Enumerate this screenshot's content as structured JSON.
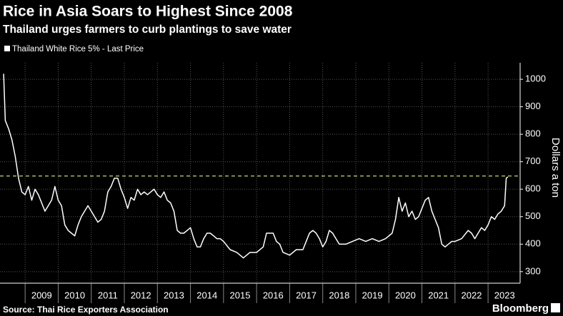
{
  "chart_data": {
    "type": "line",
    "title": "Rice in Asia Soars to Highest Since 2008",
    "subtitle": "Thailand urges farmers to curb plantings to save water",
    "y_label": "Dollars a ton",
    "source": "Source: Thai Rice Exporters Association",
    "brand": "Bloomberg",
    "x": [
      2008.35,
      2008.4,
      2008.5,
      2008.6,
      2008.7,
      2008.8,
      2008.9,
      2009.0,
      2009.1,
      2009.2,
      2009.3,
      2009.4,
      2009.5,
      2009.6,
      2009.7,
      2009.8,
      2009.9,
      2010.0,
      2010.1,
      2010.2,
      2010.3,
      2010.4,
      2010.5,
      2010.6,
      2010.7,
      2010.8,
      2010.9,
      2011.0,
      2011.1,
      2011.2,
      2011.3,
      2011.4,
      2011.5,
      2011.6,
      2011.7,
      2011.8,
      2011.9,
      2012.0,
      2012.1,
      2012.2,
      2012.3,
      2012.4,
      2012.5,
      2012.6,
      2012.7,
      2012.8,
      2012.9,
      2013.0,
      2013.1,
      2013.2,
      2013.3,
      2013.4,
      2013.5,
      2013.6,
      2013.7,
      2013.8,
      2013.9,
      2014.0,
      2014.1,
      2014.2,
      2014.3,
      2014.4,
      2014.5,
      2014.6,
      2014.7,
      2014.8,
      2014.9,
      2015.0,
      2015.2,
      2015.4,
      2015.6,
      2015.8,
      2016.0,
      2016.2,
      2016.3,
      2016.4,
      2016.5,
      2016.6,
      2016.7,
      2016.8,
      2017.0,
      2017.2,
      2017.4,
      2017.5,
      2017.6,
      2017.7,
      2017.8,
      2017.9,
      2018.0,
      2018.1,
      2018.2,
      2018.3,
      2018.4,
      2018.5,
      2018.7,
      2018.9,
      2019.1,
      2019.3,
      2019.5,
      2019.7,
      2019.9,
      2020.1,
      2020.2,
      2020.3,
      2020.4,
      2020.5,
      2020.6,
      2020.7,
      2020.8,
      2020.9,
      2021.0,
      2021.1,
      2021.2,
      2021.3,
      2021.4,
      2021.5,
      2021.6,
      2021.7,
      2021.8,
      2021.9,
      2022.0,
      2022.2,
      2022.4,
      2022.5,
      2022.6,
      2022.7,
      2022.8,
      2022.9,
      2023.0,
      2023.1,
      2023.2,
      2023.3,
      2023.4,
      2023.5,
      2023.55,
      2023.6
    ],
    "series": [
      {
        "name": "Thailand White Rice 5% - Last Price",
        "color": "#ffffff",
        "values": [
          1020,
          850,
          820,
          780,
          720,
          640,
          590,
          580,
          610,
          560,
          600,
          580,
          550,
          520,
          540,
          560,
          610,
          560,
          540,
          470,
          450,
          440,
          430,
          470,
          500,
          520,
          540,
          520,
          500,
          480,
          490,
          520,
          590,
          610,
          640,
          640,
          600,
          570,
          530,
          570,
          560,
          600,
          580,
          590,
          580,
          590,
          600,
          580,
          570,
          590,
          560,
          550,
          520,
          450,
          440,
          440,
          450,
          460,
          420,
          390,
          390,
          420,
          440,
          440,
          430,
          420,
          420,
          410,
          380,
          370,
          350,
          370,
          370,
          390,
          440,
          440,
          440,
          410,
          400,
          370,
          360,
          380,
          380,
          410,
          440,
          450,
          440,
          420,
          390,
          410,
          450,
          440,
          420,
          400,
          400,
          410,
          420,
          410,
          420,
          410,
          420,
          440,
          490,
          570,
          520,
          550,
          500,
          520,
          490,
          500,
          530,
          560,
          570,
          520,
          490,
          460,
          400,
          390,
          400,
          410,
          410,
          420,
          450,
          440,
          420,
          440,
          460,
          450,
          470,
          500,
          490,
          510,
          520,
          540,
          640,
          645
        ]
      }
    ],
    "reference_line": {
      "value": 648,
      "color": "#c9d66b"
    },
    "xlim": [
      2008.24,
      2023.97
    ],
    "xticks": [
      2009,
      2010,
      2011,
      2012,
      2013,
      2014,
      2015,
      2016,
      2017,
      2018,
      2019,
      2020,
      2021,
      2022,
      2023
    ],
    "ylim": [
      258,
      1060
    ],
    "yticks": [
      300,
      400,
      500,
      600,
      700,
      800,
      900,
      1000
    ],
    "grid": true
  }
}
